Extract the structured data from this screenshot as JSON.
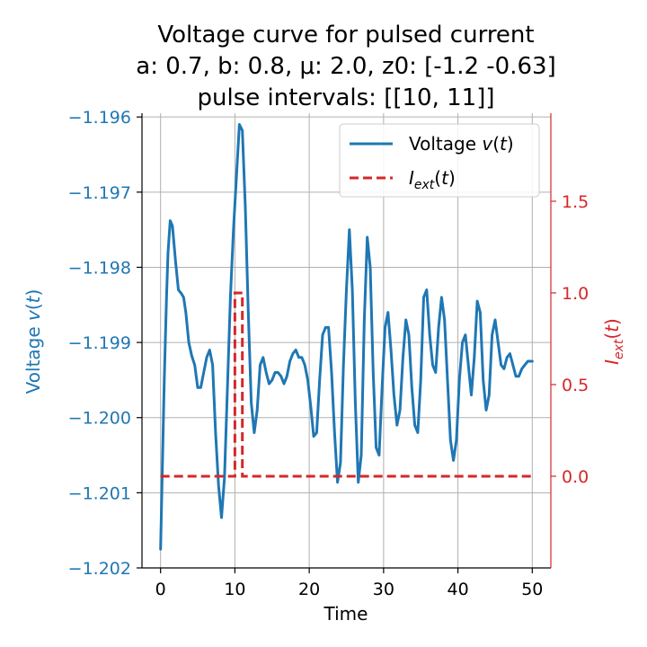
{
  "chart_data": {
    "type": "line",
    "title": {
      "line1": "Voltage curve for pulsed current",
      "line2": "a: 0.7, b: 0.8, μ: 2.0, z0: [-1.2  -0.63]",
      "line3": "pulse intervals: [[10, 11]]"
    },
    "xlabel": "Time",
    "ylabel_left": "Voltage v(t)",
    "ylabel_right": "I_ext(t)",
    "xlim": [
      -2.5,
      52.5
    ],
    "ylim_left": [
      -1.202,
      -1.19595
    ],
    "ylim_right": [
      -0.5,
      1.98
    ],
    "xticks": [
      "0",
      "10",
      "20",
      "30",
      "40",
      "50"
    ],
    "yticks_left": [
      "−1.196",
      "−1.197",
      "−1.198",
      "−1.199",
      "−1.200",
      "−1.201",
      "−1.202"
    ],
    "yticks_right": [
      "0.0",
      "0.5",
      "1.0",
      "1.5"
    ],
    "grid": true,
    "legend_position": "top-right",
    "colors": {
      "voltage": "#1f77b4",
      "current": "#d62728",
      "grid": "#b0b0b0",
      "axis": "#000000"
    },
    "series": [
      {
        "name": "Voltage v(t)",
        "style": "solid",
        "x": [
          0,
          0.25,
          0.5,
          0.8,
          1.0,
          1.3,
          1.6,
          2.0,
          2.4,
          2.8,
          3.1,
          3.4,
          3.8,
          4.2,
          4.6,
          5.0,
          5.4,
          5.8,
          6.2,
          6.6,
          7.0,
          7.4,
          7.8,
          8.2,
          8.6,
          9.0,
          9.4,
          9.8,
          10.2,
          10.6,
          11.0,
          11.4,
          11.8,
          12.2,
          12.6,
          13.0,
          13.4,
          13.8,
          14.2,
          14.6,
          15.0,
          15.4,
          15.8,
          16.2,
          16.6,
          17.0,
          17.4,
          17.8,
          18.2,
          18.6,
          19.0,
          19.4,
          19.8,
          20.2,
          20.6,
          21.0,
          21.4,
          21.8,
          22.2,
          22.6,
          23.0,
          23.4,
          23.8,
          24.2,
          24.6,
          25.0,
          25.4,
          25.8,
          26.2,
          26.6,
          27.0,
          27.4,
          27.8,
          28.2,
          28.6,
          29.0,
          29.4,
          29.8,
          30.2,
          30.6,
          31.0,
          31.4,
          31.8,
          32.2,
          32.6,
          33.0,
          33.4,
          33.8,
          34.2,
          34.6,
          35.0,
          35.4,
          35.8,
          36.2,
          36.6,
          37.0,
          37.4,
          37.8,
          38.2,
          38.6,
          39.0,
          39.4,
          39.8,
          40.2,
          40.6,
          41.0,
          41.4,
          41.8,
          42.2,
          42.6,
          43.0,
          43.4,
          43.8,
          44.2,
          44.6,
          45.0,
          45.4,
          45.8,
          46.2,
          46.6,
          47.0,
          47.4,
          47.8,
          48.2,
          48.6,
          49.0,
          49.4,
          49.8,
          50.0
        ],
        "values": [
          -1.20175,
          -1.2006,
          -1.1995,
          -1.1984,
          -1.1978,
          -1.19738,
          -1.19745,
          -1.1979,
          -1.1983,
          -1.19835,
          -1.1984,
          -1.1986,
          -1.199,
          -1.19918,
          -1.1993,
          -1.1996,
          -1.1996,
          -1.1994,
          -1.1992,
          -1.1991,
          -1.1993,
          -1.2002,
          -1.2009,
          -1.20133,
          -1.2008,
          -1.1996,
          -1.1984,
          -1.1975,
          -1.1968,
          -1.1961,
          -1.19618,
          -1.1972,
          -1.1986,
          -1.1998,
          -1.2002,
          -1.1999,
          -1.1993,
          -1.1992,
          -1.1994,
          -1.19955,
          -1.1995,
          -1.1994,
          -1.1994,
          -1.19945,
          -1.19955,
          -1.19945,
          -1.19925,
          -1.19915,
          -1.1991,
          -1.1992,
          -1.1992,
          -1.1993,
          -1.1995,
          -1.19985,
          -1.20025,
          -1.2002,
          -1.1995,
          -1.1989,
          -1.1988,
          -1.1988,
          -1.1994,
          -1.2002,
          -1.20086,
          -1.2006,
          -1.1993,
          -1.1983,
          -1.1975,
          -1.1983,
          -1.1998,
          -1.20086,
          -1.2005,
          -1.1987,
          -1.1976,
          -1.198,
          -1.1994,
          -1.2004,
          -1.2005,
          -1.1996,
          -1.1988,
          -1.1986,
          -1.1991,
          -1.1997,
          -1.2001,
          -1.1999,
          -1.1992,
          -1.1987,
          -1.1989,
          -1.1996,
          -1.2001,
          -1.2002,
          -1.1995,
          -1.1984,
          -1.1983,
          -1.1989,
          -1.1993,
          -1.1994,
          -1.1988,
          -1.1984,
          -1.1987,
          -1.1995,
          -1.2003,
          -1.20057,
          -1.2003,
          -1.1995,
          -1.199,
          -1.1989,
          -1.1993,
          -1.1997,
          -1.1992,
          -1.19845,
          -1.1986,
          -1.1995,
          -1.1999,
          -1.1997,
          -1.1989,
          -1.1987,
          -1.199,
          -1.1993,
          -1.19935,
          -1.1992,
          -1.19915,
          -1.1993,
          -1.19945,
          -1.19945,
          -1.19935,
          -1.1993,
          -1.19925,
          -1.19925,
          -1.19925
        ]
      },
      {
        "name": "I_ext(t)",
        "style": "dashed",
        "x": [
          0,
          10,
          10,
          11,
          11,
          50
        ],
        "values": [
          0,
          0,
          1,
          1,
          0,
          0
        ]
      }
    ]
  }
}
